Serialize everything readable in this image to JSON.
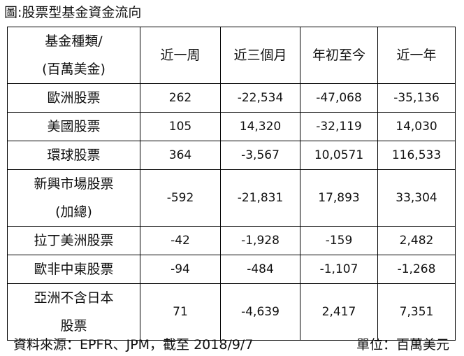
{
  "title": "圖:股票型基金資金流向",
  "table": {
    "header": {
      "fund_line1": "基金種類/",
      "fund_line2": "(百萬美金)",
      "col1": "近一周",
      "col2": "近三個月",
      "col3": "年初至今",
      "col4": "近一年"
    },
    "rows": [
      {
        "line1": "歐洲股票",
        "line2": "",
        "v1": "262",
        "v2": "-22,534",
        "v3": "-47,068",
        "v4": "-35,136"
      },
      {
        "line1": "美國股票",
        "line2": "",
        "v1": "105",
        "v2": "14,320",
        "v3": "-32,119",
        "v4": "14,030"
      },
      {
        "line1": "環球股票",
        "line2": "",
        "v1": "364",
        "v2": "-3,567",
        "v3": "10,0571",
        "v4": "116,533"
      },
      {
        "line1": "新興市場股票",
        "line2": "(加總)",
        "v1": "-592",
        "v2": "-21,831",
        "v3": "17,893",
        "v4": "33,304"
      },
      {
        "line1": "拉丁美洲股票",
        "line2": "",
        "v1": "-42",
        "v2": "-1,928",
        "v3": "-159",
        "v4": "2,482"
      },
      {
        "line1": "歐非中東股票",
        "line2": "",
        "v1": "-94",
        "v2": "-484",
        "v3": "-1,107",
        "v4": "-1,268"
      },
      {
        "line1": "亞洲不含日本",
        "line2": "股票",
        "v1": "71",
        "v2": "-4,639",
        "v3": "2,417",
        "v4": "7,351"
      }
    ]
  },
  "footer": {
    "source": "資料來源：EPFR、JPM，截至 2018/9/7",
    "unit": "單位：百萬美元"
  }
}
